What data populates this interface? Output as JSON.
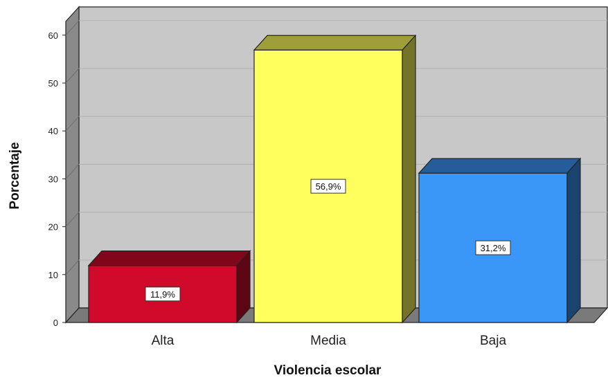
{
  "chart_data": {
    "type": "bar",
    "style": "3d",
    "title": "",
    "xlabel": "Violencia escolar",
    "ylabel": "Porcentaje",
    "categories": [
      "Alta",
      "Media",
      "Baja"
    ],
    "values": [
      11.9,
      56.9,
      31.2
    ],
    "data_labels": [
      "11,9%",
      "56,9%",
      "31,2%"
    ],
    "ylim": [
      0,
      60
    ],
    "yticks": [
      0,
      10,
      20,
      30,
      40,
      50,
      60
    ],
    "grid": true,
    "legend": "none",
    "colors": {
      "bars": [
        "#d10a2c",
        "#ffff5e",
        "#3a96f7"
      ],
      "plot_background": "#c8c8c8",
      "floor": "#7a7a7a",
      "grid": "#b0b0b0"
    }
  }
}
